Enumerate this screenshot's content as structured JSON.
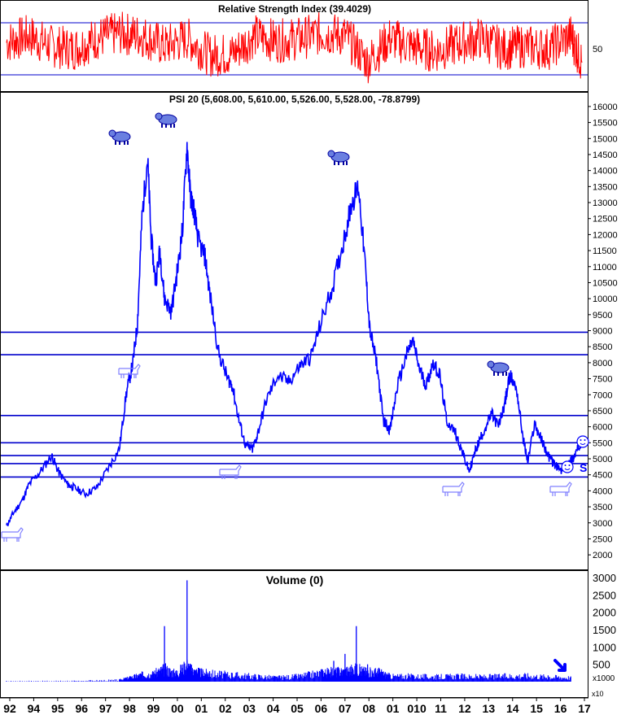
{
  "chart_data": [
    {
      "panel": "rsi",
      "type": "line",
      "title": "Relative Strength Index (39.4029)",
      "ticks": [
        50
      ],
      "ylim": [
        20,
        85
      ],
      "levels": [
        70,
        30
      ],
      "series": [
        {
          "name": "",
          "color": "#ff0000",
          "x": [
            1992.0,
            1993.0,
            1994.0,
            1995.0,
            1996.0,
            1997.0,
            1998.0,
            1999.0,
            2000.0,
            2001.0,
            2002.0,
            2003.0,
            2004.0,
            2005.0,
            2006.0,
            2007.0,
            2008.0,
            2009.0,
            2010.0,
            2011.0,
            2012.0,
            2013.0,
            2014.0,
            2015.0,
            2016.0,
            2017.0,
            2017.5
          ],
          "y": [
            55,
            60,
            52,
            50,
            58,
            62,
            60,
            52,
            58,
            45,
            46,
            60,
            56,
            58,
            62,
            60,
            40,
            58,
            52,
            48,
            54,
            58,
            50,
            52,
            50,
            60,
            39.4
          ]
        }
      ]
    },
    {
      "panel": "price",
      "type": "line",
      "title": "PSI 20 (5,608.00, 5,610.00, 5,526.00, 5,528.00, -78.8799)",
      "ticks": [
        16000,
        15500,
        15000,
        14500,
        14000,
        13500,
        13000,
        12500,
        12000,
        11500,
        11000,
        10500,
        10000,
        9500,
        9000,
        8500,
        8000,
        7500,
        7000,
        6500,
        6000,
        5500,
        5000,
        4500,
        4000,
        3500,
        3000,
        2500,
        2000
      ],
      "ylim": [
        1800,
        16150
      ],
      "levels": [
        8950,
        8250,
        6350,
        5500,
        5100,
        4850,
        4430
      ],
      "annotations": [
        "S"
      ],
      "icons": [
        "bull-icon",
        "bull-icon",
        "bull-icon",
        "bull-icon",
        "bull-icon",
        "bear-icon",
        "bear-icon",
        "bear-icon",
        "bear-icon",
        "smiley-icon",
        "smiley-icon",
        "arrow-down-right-icon"
      ],
      "series": [
        {
          "name": "",
          "color": "#0000ff",
          "x": [
            1992.0,
            1992.3,
            1992.7,
            1993.0,
            1993.5,
            1994.0,
            1994.3,
            1994.7,
            1995.0,
            1995.5,
            1996.0,
            1996.5,
            1997.0,
            1997.3,
            1997.6,
            1997.8,
            1998.0,
            1998.25,
            1998.4,
            1998.6,
            1998.8,
            1999.0,
            1999.3,
            1999.6,
            1999.8,
            2000.0,
            2000.15,
            2000.3,
            2000.5,
            2000.8,
            2001.0,
            2001.4,
            2001.8,
            2002.0,
            2002.3,
            2002.6,
            2002.9,
            2003.1,
            2003.5,
            2004.0,
            2004.5,
            2005.0,
            2005.5,
            2006.0,
            2006.5,
            2007.0,
            2007.3,
            2007.6,
            2007.9,
            2008.1,
            2008.4,
            2008.7,
            2009.0,
            2009.3,
            2009.7,
            2010.0,
            2010.3,
            2010.6,
            2010.9,
            2011.2,
            2011.5,
            2011.9,
            2012.2,
            2012.5,
            2012.8,
            2013.1,
            2013.5,
            2013.8,
            2014.1,
            2014.3,
            2014.6,
            2014.9,
            2015.1,
            2015.4,
            2015.7,
            2016.0,
            2016.3,
            2016.6,
            2016.9,
            2017.1,
            2017.3,
            2017.45
          ],
          "y": [
            2900,
            3300,
            3700,
            4200,
            4600,
            5100,
            4600,
            4200,
            4100,
            3900,
            4100,
            4700,
            5300,
            7000,
            8000,
            9200,
            12500,
            14400,
            12000,
            10500,
            11500,
            10000,
            9600,
            11000,
            12200,
            14800,
            13200,
            12800,
            11800,
            11300,
            10200,
            8300,
            7500,
            7300,
            6200,
            5400,
            5300,
            5700,
            6800,
            7600,
            7400,
            7900,
            8200,
            9400,
            10500,
            12000,
            13000,
            13500,
            11000,
            9000,
            8000,
            6200,
            5900,
            7200,
            8200,
            8700,
            7800,
            7300,
            8000,
            7600,
            6200,
            5800,
            5200,
            4600,
            5300,
            5800,
            6400,
            6000,
            6800,
            7600,
            7200,
            5600,
            4900,
            6100,
            5600,
            5100,
            4800,
            4600,
            4900,
            5000,
            5300,
            5528
          ]
        }
      ]
    },
    {
      "panel": "volume",
      "type": "bar",
      "title": "Volume (0)",
      "ticks": [
        3000,
        2500,
        2000,
        1500,
        1000,
        500
      ],
      "ylim": [
        0,
        3000
      ],
      "unit_label": "x1000",
      "unit_label_2": "x10",
      "series": [
        {
          "name": "",
          "color": "#0000ff",
          "x": [
            1992.0,
            1995.0,
            1997.0,
            1997.5,
            1998.0,
            1998.5,
            1999.0,
            1999.5,
            2000.0,
            2000.3,
            2000.5,
            2001.0,
            2002.0,
            2003.0,
            2004.0,
            2005.0,
            2006.0,
            2006.5,
            2007.0,
            2007.5,
            2008.0,
            2008.5,
            2009.0,
            2010.0,
            2011.0,
            2012.0,
            2013.0,
            2014.0,
            2015.0,
            2016.0,
            2017.0
          ],
          "y": [
            20,
            30,
            60,
            150,
            250,
            280,
            1600,
            300,
            2920,
            350,
            400,
            300,
            250,
            200,
            150,
            200,
            350,
            600,
            800,
            1600,
            500,
            400,
            200,
            200,
            180,
            200,
            180,
            200,
            220,
            180,
            150
          ]
        }
      ]
    }
  ],
  "x_axis": {
    "labels": [
      "92",
      "94",
      "95",
      "96",
      "97",
      "98",
      "99",
      "00",
      "01",
      "02",
      "03",
      "04",
      "05",
      "06",
      "07",
      "08",
      "01",
      "010",
      "11",
      "12",
      "13",
      "14",
      "15",
      "16",
      "17"
    ]
  }
}
